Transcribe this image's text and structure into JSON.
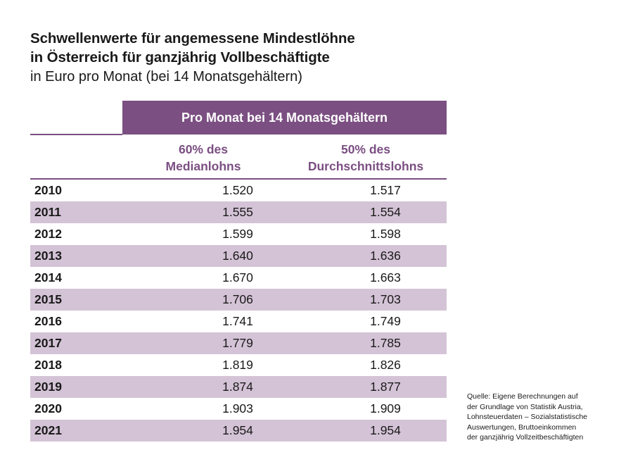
{
  "title": {
    "line1": "Schwellenwerte für angemessene Mindestlöhne",
    "line2": "in Österreich für ganzjährig Vollbeschäftigte",
    "line3": "in Euro pro Monat (bei 14 Monatsgehältern)"
  },
  "table": {
    "group_header": "Pro Monat bei 14 Monatsgehältern",
    "col1": {
      "line1": "60% des",
      "line2": "Medianlohns"
    },
    "col2": {
      "line1": "50% des",
      "line2": "Durchschnittslohns"
    },
    "rows": [
      {
        "year": "2010",
        "median": "1.520",
        "avg": "1.517"
      },
      {
        "year": "2011",
        "median": "1.555",
        "avg": "1.554"
      },
      {
        "year": "2012",
        "median": "1.599",
        "avg": "1.598"
      },
      {
        "year": "2013",
        "median": "1.640",
        "avg": "1.636"
      },
      {
        "year": "2014",
        "median": "1.670",
        "avg": "1.663"
      },
      {
        "year": "2015",
        "median": "1.706",
        "avg": "1.703"
      },
      {
        "year": "2016",
        "median": "1.741",
        "avg": "1.749"
      },
      {
        "year": "2017",
        "median": "1.779",
        "avg": "1.785"
      },
      {
        "year": "2018",
        "median": "1.819",
        "avg": "1.826"
      },
      {
        "year": "2019",
        "median": "1.874",
        "avg": "1.877"
      },
      {
        "year": "2020",
        "median": "1.903",
        "avg": "1.909"
      },
      {
        "year": "2021",
        "median": "1.954",
        "avg": "1.954"
      }
    ]
  },
  "source": {
    "lines": [
      "Quelle: Eigene Berechnungen auf",
      "der Grundlage von Statistik Austria,",
      "Lohnsteuerdaten – Sozialstatistische",
      "Auswertungen, Bruttoeinkommen",
      "der ganzjährig Vollzeitbeschäftigten"
    ]
  },
  "colors": {
    "accent": "#7b4f82",
    "row_shade": "#d4c3d6"
  }
}
